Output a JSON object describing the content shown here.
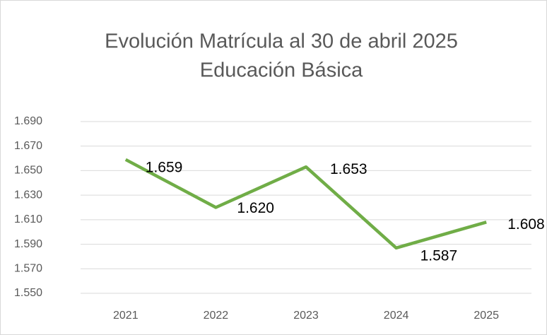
{
  "chart_data": {
    "type": "line",
    "title": "Evolución Matrícula al 30 de abril 2025",
    "subtitle": "Educación Básica",
    "categories": [
      "2021",
      "2022",
      "2023",
      "2024",
      "2025"
    ],
    "series": [
      {
        "name": "Matrícula",
        "color": "#70ad47",
        "values": [
          1659,
          1620,
          1653,
          1587,
          1608
        ],
        "value_labels": [
          "1.659",
          "1.620",
          "1.653",
          "1.587",
          "1.608"
        ]
      }
    ],
    "ylim": [
      1550,
      1690
    ],
    "yticks": [
      {
        "value": 1550,
        "label": "1.550"
      },
      {
        "value": 1570,
        "label": "1.570"
      },
      {
        "value": 1590,
        "label": "1.590"
      },
      {
        "value": 1610,
        "label": "1.610"
      },
      {
        "value": 1630,
        "label": "1.630"
      },
      {
        "value": 1650,
        "label": "1.650"
      },
      {
        "value": 1670,
        "label": "1.670"
      },
      {
        "value": 1690,
        "label": "1.690"
      }
    ],
    "grid": true
  }
}
